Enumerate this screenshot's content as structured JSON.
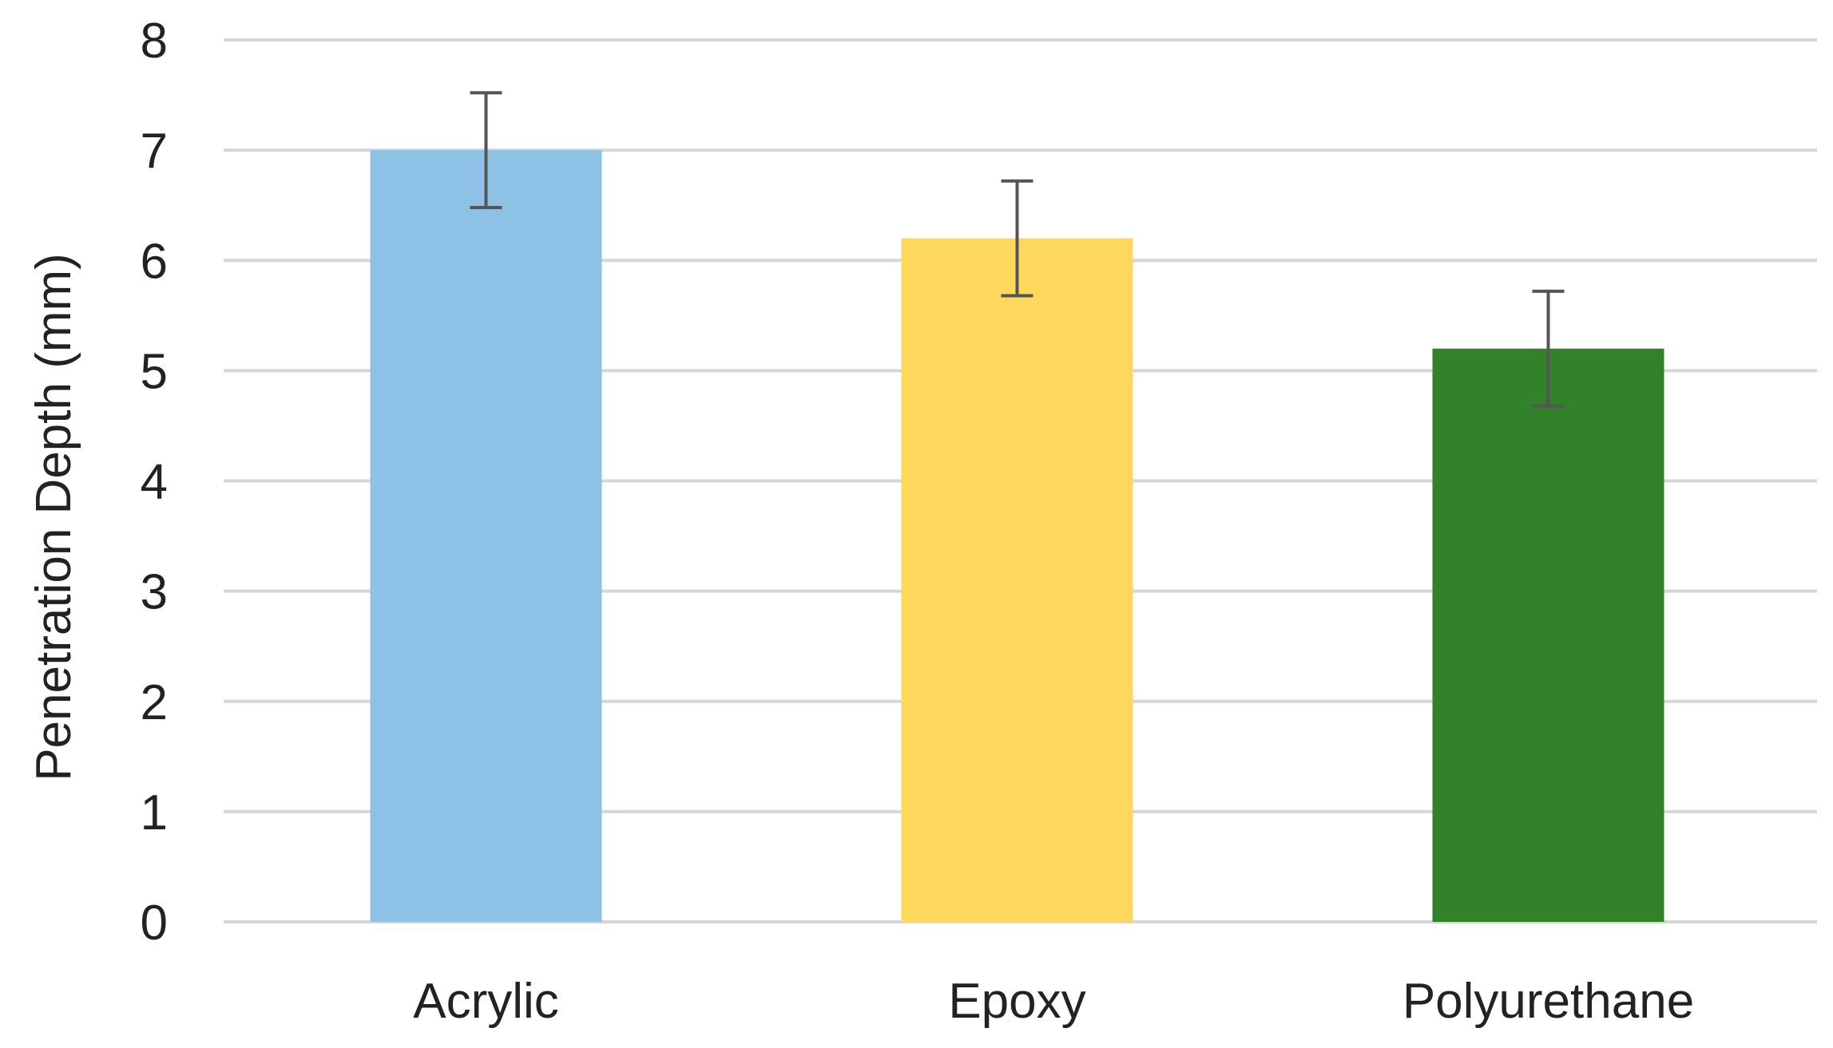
{
  "chart_data": {
    "type": "bar",
    "categories": [
      "Acrylic",
      "Epoxy",
      "Polyurethane"
    ],
    "values": [
      7.0,
      6.2,
      5.2
    ],
    "errors": [
      0.52,
      0.52,
      0.52
    ],
    "bar_colors": [
      "#8DC2E6",
      "#FDD85D",
      "#31822A"
    ],
    "ylabel": "Penetration Depth  (mm)",
    "xlabel": "",
    "title": "",
    "ylim": [
      0,
      8
    ],
    "yticks": [
      0,
      1,
      2,
      3,
      4,
      5,
      6,
      7,
      8
    ],
    "grid": true,
    "legend": "none"
  }
}
